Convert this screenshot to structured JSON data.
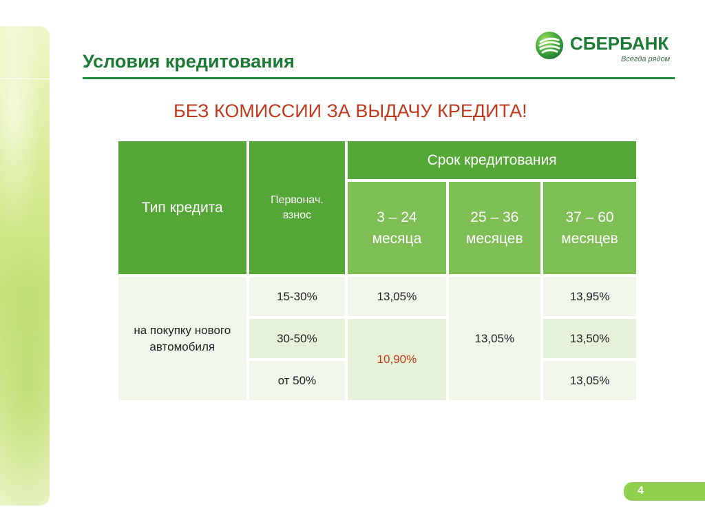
{
  "slide": {
    "title": "Условия кредитования",
    "headline": "БЕЗ КОМИССИИ ЗА ВЫДАЧУ КРЕДИТА!",
    "page_number": "4"
  },
  "logo": {
    "name": "СБЕРБАНК",
    "tagline": "Всегда рядом"
  },
  "colors": {
    "brand_green": "#1c7a35",
    "header_cell": "#55a838",
    "subheader_cell": "#7ebf55",
    "body_cell": "#f0f6e9",
    "accent_red": "#c0391b"
  },
  "table": {
    "headers": {
      "type": "Тип кредита",
      "down_payment": "Первонач. взнос",
      "term": "Срок кредитования",
      "term_1": "3 – 24 месяца",
      "term_2": "25 – 36 месяцев",
      "term_3": "37 – 60 месяцев"
    },
    "loan_type": "на покупку нового автомобиля",
    "rows": [
      {
        "down_payment": "15-30%",
        "term_1": "13,05%",
        "term_3": "13,95%"
      },
      {
        "down_payment": "30-50%",
        "term_3": "13,50%"
      },
      {
        "down_payment": "от 50%",
        "term_3": "13,05%"
      }
    ],
    "merged": {
      "term_1_rows_2_3": "10,90%",
      "term_2_all_rows": "13,05%"
    }
  }
}
